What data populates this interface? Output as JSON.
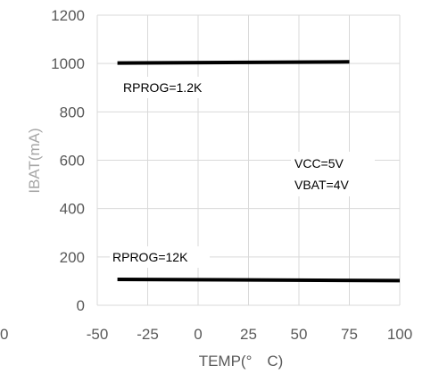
{
  "chart_data": {
    "type": "line",
    "title": "",
    "xlabel": "TEMP(°　C)",
    "ylabel": "IBAT(mA)",
    "xlim": [
      -50,
      100
    ],
    "ylim": [
      0,
      1200
    ],
    "x_ticks": [
      -50,
      -25,
      0,
      25,
      50,
      75,
      100
    ],
    "y_ticks": [
      0,
      200,
      400,
      600,
      800,
      1000,
      1200
    ],
    "grid": true,
    "stray_label": "0",
    "series": [
      {
        "name": "RPROG=1.2K",
        "x": [
          -40,
          75
        ],
        "y": [
          1002,
          1007
        ],
        "color": "#000000"
      },
      {
        "name": "RPROG=12K",
        "x": [
          -40,
          100
        ],
        "y": [
          107,
          102
        ],
        "color": "#000000"
      }
    ],
    "annotations": [
      "VCC=5V",
      "VBAT=4V"
    ],
    "colors": {
      "grid": "#d9d9d9",
      "tick_text": "#595959",
      "line": "#000000"
    }
  }
}
